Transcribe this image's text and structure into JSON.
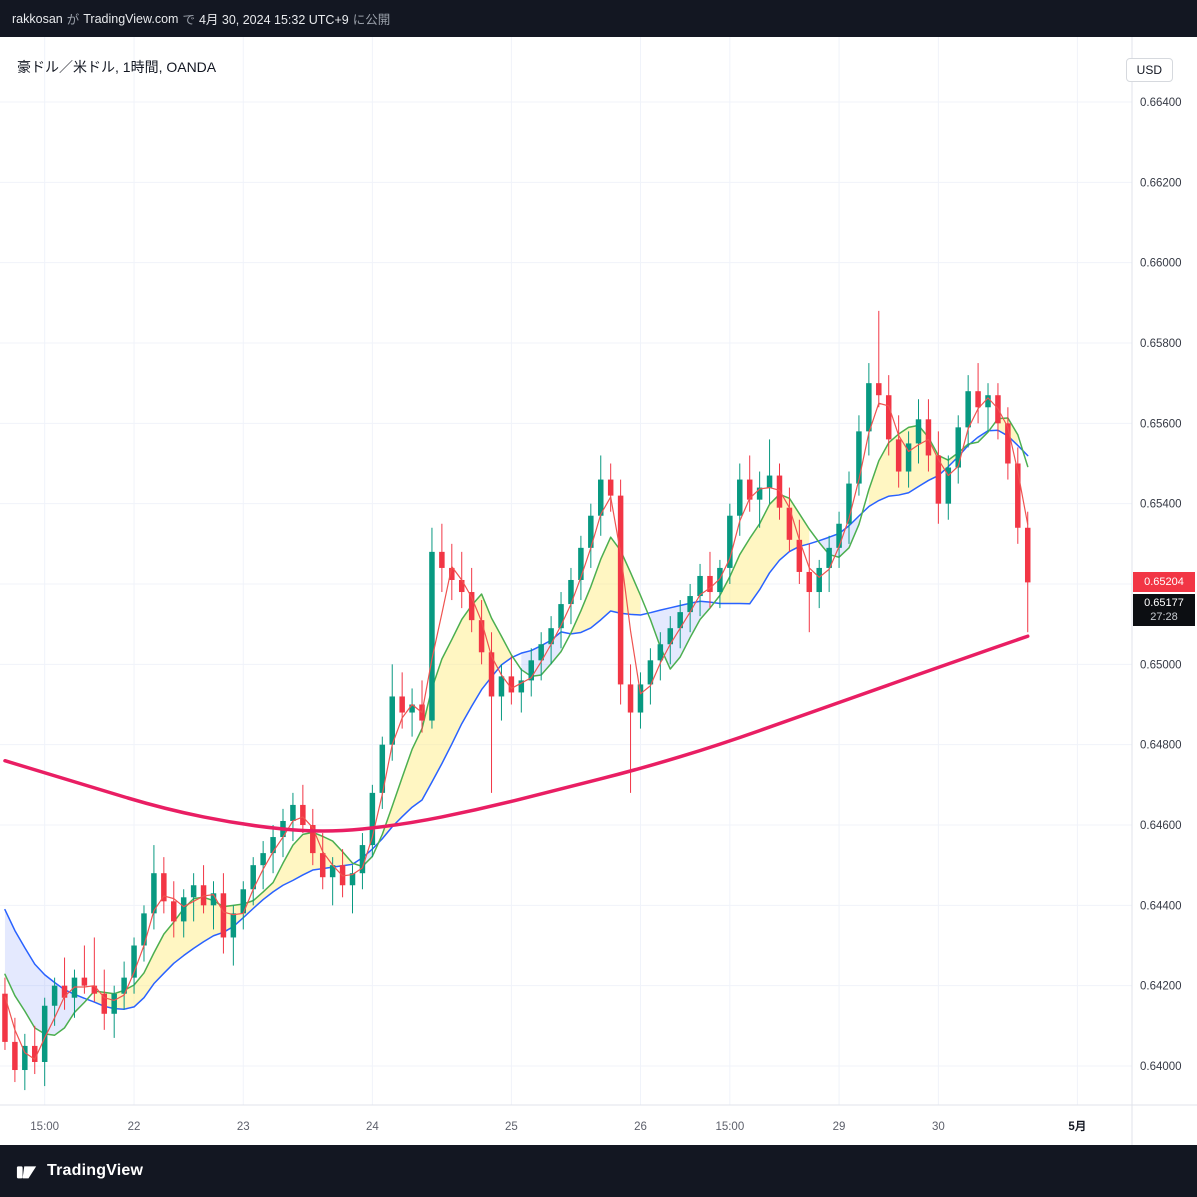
{
  "topbar": {
    "user": "rakkosan",
    "particle1": "が",
    "site": "TradingView.com",
    "particle2": "で",
    "datetime": "4月 30, 2024 15:32 UTC+9",
    "particle3": "に公開"
  },
  "header": {
    "title": "豪ドル／米ドル, 1時間, OANDA",
    "currency_button": "USD"
  },
  "price_scale": {
    "labels": [
      "0.66400",
      "0.66200",
      "0.66000",
      "0.65800",
      "0.65600",
      "0.65400",
      "0.65200",
      "0.65000",
      "0.64800",
      "0.64600",
      "0.64400",
      "0.64200",
      "0.64000"
    ],
    "last_price_badge": {
      "value": "0.65204",
      "color": "#f23645"
    },
    "countdown_badge": {
      "value": "0.65177",
      "countdown": "27:28",
      "color": "#0c0e12"
    }
  },
  "footer": {
    "logo_text": "TradingView"
  },
  "chart_data": {
    "type": "candlestick",
    "symbol": "豪ドル／米ドル",
    "interval": "1時間",
    "exchange": "OANDA",
    "unit": "USD",
    "ylim": [
      0.639,
      0.6656
    ],
    "y_gridline_step": 0.002,
    "last_price": 0.65204,
    "secondary_price": 0.65177,
    "bar_close_countdown": "27:28",
    "colors": {
      "up": "#089981",
      "down": "#f23645",
      "grid": "#f0f3fa",
      "axis_text": "#363a45",
      "border": "#e0e3eb"
    },
    "candles": [
      [
        0.6418,
        0.6422,
        0.6404,
        0.6406
      ],
      [
        0.6406,
        0.6412,
        0.6396,
        0.6399
      ],
      [
        0.6399,
        0.6408,
        0.6394,
        0.6405
      ],
      [
        0.6405,
        0.641,
        0.6398,
        0.6401
      ],
      [
        0.6401,
        0.6417,
        0.6395,
        0.6415
      ],
      [
        0.6415,
        0.6422,
        0.641,
        0.642
      ],
      [
        0.642,
        0.6427,
        0.6414,
        0.6417
      ],
      [
        0.6417,
        0.6424,
        0.6412,
        0.6422
      ],
      [
        0.6422,
        0.643,
        0.6418,
        0.642
      ],
      [
        0.642,
        0.6432,
        0.6416,
        0.6418
      ],
      [
        0.6418,
        0.6424,
        0.6409,
        0.6413
      ],
      [
        0.6413,
        0.642,
        0.6407,
        0.6418
      ],
      [
        0.6418,
        0.6426,
        0.6414,
        0.6422
      ],
      [
        0.6422,
        0.6432,
        0.6418,
        0.643
      ],
      [
        0.643,
        0.644,
        0.6426,
        0.6438
      ],
      [
        0.6438,
        0.6455,
        0.6434,
        0.6448
      ],
      [
        0.6448,
        0.6452,
        0.6438,
        0.6441
      ],
      [
        0.6441,
        0.6446,
        0.6432,
        0.6436
      ],
      [
        0.6436,
        0.6444,
        0.6432,
        0.6442
      ],
      [
        0.6442,
        0.6448,
        0.6436,
        0.6445
      ],
      [
        0.6445,
        0.645,
        0.6438,
        0.644
      ],
      [
        0.644,
        0.6446,
        0.6434,
        0.6443
      ],
      [
        0.6443,
        0.6448,
        0.6428,
        0.6432
      ],
      [
        0.6432,
        0.644,
        0.6425,
        0.6438
      ],
      [
        0.6438,
        0.6446,
        0.6434,
        0.6444
      ],
      [
        0.6444,
        0.6452,
        0.644,
        0.645
      ],
      [
        0.645,
        0.6456,
        0.6444,
        0.6453
      ],
      [
        0.6453,
        0.646,
        0.6448,
        0.6457
      ],
      [
        0.6457,
        0.6464,
        0.6452,
        0.6461
      ],
      [
        0.6461,
        0.6468,
        0.6456,
        0.6465
      ],
      [
        0.6465,
        0.647,
        0.6458,
        0.646
      ],
      [
        0.646,
        0.6464,
        0.645,
        0.6453
      ],
      [
        0.6453,
        0.6458,
        0.6444,
        0.6447
      ],
      [
        0.6447,
        0.6452,
        0.644,
        0.645
      ],
      [
        0.645,
        0.6454,
        0.6442,
        0.6445
      ],
      [
        0.6445,
        0.645,
        0.6438,
        0.6448
      ],
      [
        0.6448,
        0.6458,
        0.6444,
        0.6455
      ],
      [
        0.6455,
        0.647,
        0.6452,
        0.6468
      ],
      [
        0.6468,
        0.6482,
        0.6464,
        0.648
      ],
      [
        0.648,
        0.65,
        0.6476,
        0.6492
      ],
      [
        0.6492,
        0.6498,
        0.6484,
        0.6488
      ],
      [
        0.6488,
        0.6494,
        0.6482,
        0.649
      ],
      [
        0.649,
        0.6496,
        0.6483,
        0.6486
      ],
      [
        0.6486,
        0.6534,
        0.6484,
        0.6528
      ],
      [
        0.6528,
        0.6535,
        0.6518,
        0.6524
      ],
      [
        0.6524,
        0.653,
        0.6516,
        0.6521
      ],
      [
        0.6521,
        0.6528,
        0.6514,
        0.6518
      ],
      [
        0.6518,
        0.6524,
        0.6508,
        0.6511
      ],
      [
        0.6511,
        0.6516,
        0.65,
        0.6503
      ],
      [
        0.6503,
        0.6508,
        0.6468,
        0.6492
      ],
      [
        0.6492,
        0.65,
        0.6486,
        0.6497
      ],
      [
        0.6497,
        0.6502,
        0.649,
        0.6493
      ],
      [
        0.6493,
        0.6499,
        0.6488,
        0.6496
      ],
      [
        0.6496,
        0.6504,
        0.6492,
        0.6501
      ],
      [
        0.6501,
        0.6508,
        0.6496,
        0.6505
      ],
      [
        0.6505,
        0.6512,
        0.65,
        0.6509
      ],
      [
        0.6509,
        0.6518,
        0.6504,
        0.6515
      ],
      [
        0.6515,
        0.6524,
        0.651,
        0.6521
      ],
      [
        0.6521,
        0.6532,
        0.6516,
        0.6529
      ],
      [
        0.6529,
        0.654,
        0.6524,
        0.6537
      ],
      [
        0.6537,
        0.6552,
        0.6532,
        0.6546
      ],
      [
        0.6546,
        0.655,
        0.6538,
        0.6542
      ],
      [
        0.6542,
        0.6546,
        0.649,
        0.6495
      ],
      [
        0.6495,
        0.65,
        0.6468,
        0.6488
      ],
      [
        0.6488,
        0.6498,
        0.6484,
        0.6495
      ],
      [
        0.6495,
        0.6504,
        0.649,
        0.6501
      ],
      [
        0.6501,
        0.6508,
        0.6496,
        0.6505
      ],
      [
        0.6505,
        0.6512,
        0.65,
        0.6509
      ],
      [
        0.6509,
        0.6516,
        0.6504,
        0.6513
      ],
      [
        0.6513,
        0.652,
        0.6508,
        0.6517
      ],
      [
        0.6517,
        0.6525,
        0.6512,
        0.6522
      ],
      [
        0.6522,
        0.6528,
        0.6514,
        0.6518
      ],
      [
        0.6518,
        0.6526,
        0.6514,
        0.6524
      ],
      [
        0.6524,
        0.654,
        0.652,
        0.6537
      ],
      [
        0.6537,
        0.655,
        0.6532,
        0.6546
      ],
      [
        0.6546,
        0.6552,
        0.6538,
        0.6541
      ],
      [
        0.6541,
        0.6548,
        0.6534,
        0.6544
      ],
      [
        0.6544,
        0.6556,
        0.654,
        0.6547
      ],
      [
        0.6547,
        0.655,
        0.6536,
        0.6539
      ],
      [
        0.6539,
        0.6544,
        0.6528,
        0.6531
      ],
      [
        0.6531,
        0.6536,
        0.652,
        0.6523
      ],
      [
        0.6523,
        0.653,
        0.6508,
        0.6518
      ],
      [
        0.6518,
        0.6526,
        0.6514,
        0.6524
      ],
      [
        0.6524,
        0.6532,
        0.6518,
        0.6529
      ],
      [
        0.6529,
        0.6538,
        0.6524,
        0.6535
      ],
      [
        0.6535,
        0.6548,
        0.653,
        0.6545
      ],
      [
        0.6545,
        0.6562,
        0.6542,
        0.6558
      ],
      [
        0.6558,
        0.6575,
        0.6552,
        0.657
      ],
      [
        0.657,
        0.6588,
        0.6564,
        0.6567
      ],
      [
        0.6567,
        0.6572,
        0.6552,
        0.6556
      ],
      [
        0.6556,
        0.6562,
        0.6544,
        0.6548
      ],
      [
        0.6548,
        0.6558,
        0.6544,
        0.6555
      ],
      [
        0.6555,
        0.6566,
        0.655,
        0.6561
      ],
      [
        0.6561,
        0.6566,
        0.6548,
        0.6552
      ],
      [
        0.6552,
        0.6558,
        0.6535,
        0.654
      ],
      [
        0.654,
        0.6552,
        0.6536,
        0.6549
      ],
      [
        0.6549,
        0.6562,
        0.6545,
        0.6559
      ],
      [
        0.6559,
        0.6572,
        0.6554,
        0.6568
      ],
      [
        0.6568,
        0.6575,
        0.656,
        0.6564
      ],
      [
        0.6564,
        0.657,
        0.6558,
        0.6567
      ],
      [
        0.6567,
        0.657,
        0.6556,
        0.656
      ],
      [
        0.656,
        0.6564,
        0.6546,
        0.655
      ],
      [
        0.655,
        0.6554,
        0.653,
        0.6534
      ],
      [
        0.6534,
        0.6538,
        0.6508,
        0.65204
      ]
    ],
    "prior_closes": [
      0.648,
      0.6472,
      0.6465,
      0.6458,
      0.6452,
      0.6447,
      0.6442,
      0.6438,
      0.6434,
      0.6431,
      0.6428,
      0.6426,
      0.6424,
      0.6422
    ],
    "time_ticks": [
      {
        "i": 4,
        "label": "15:00"
      },
      {
        "i": 13,
        "label": "22"
      },
      {
        "i": 24,
        "label": "23"
      },
      {
        "i": 37,
        "label": "24"
      },
      {
        "i": 51,
        "label": "25"
      },
      {
        "i": 64,
        "label": "26"
      },
      {
        "i": 73,
        "label": "15:00"
      },
      {
        "i": 84,
        "label": "29"
      },
      {
        "i": 94,
        "label": "30"
      },
      {
        "i": 108,
        "label": "5月",
        "month": true
      }
    ],
    "overlays": {
      "ma_fast": {
        "type": "sma",
        "window": 6,
        "color": "#4caf50"
      },
      "ma_slow": {
        "type": "sma",
        "window": 14,
        "color": "#2962ff"
      },
      "ma_signal": {
        "type": "sma",
        "window": 3,
        "color": "#ef5350"
      },
      "ma_long": {
        "type": "sma",
        "window": 200,
        "color": "#e91e63",
        "points": [
          [
            0,
            0.6476
          ],
          [
            8,
            0.647
          ],
          [
            16,
            0.6464
          ],
          [
            24,
            0.646
          ],
          [
            32,
            0.6458
          ],
          [
            40,
            0.646
          ],
          [
            48,
            0.6464
          ],
          [
            56,
            0.6469
          ],
          [
            64,
            0.6474
          ],
          [
            72,
            0.648
          ],
          [
            80,
            0.6487
          ],
          [
            88,
            0.6494
          ],
          [
            96,
            0.6501
          ],
          [
            103,
            0.6507
          ]
        ]
      },
      "band_fill_bull": "rgba(255,235,120,0.45)",
      "band_fill_bear": "rgba(90,120,250,0.16)"
    }
  }
}
